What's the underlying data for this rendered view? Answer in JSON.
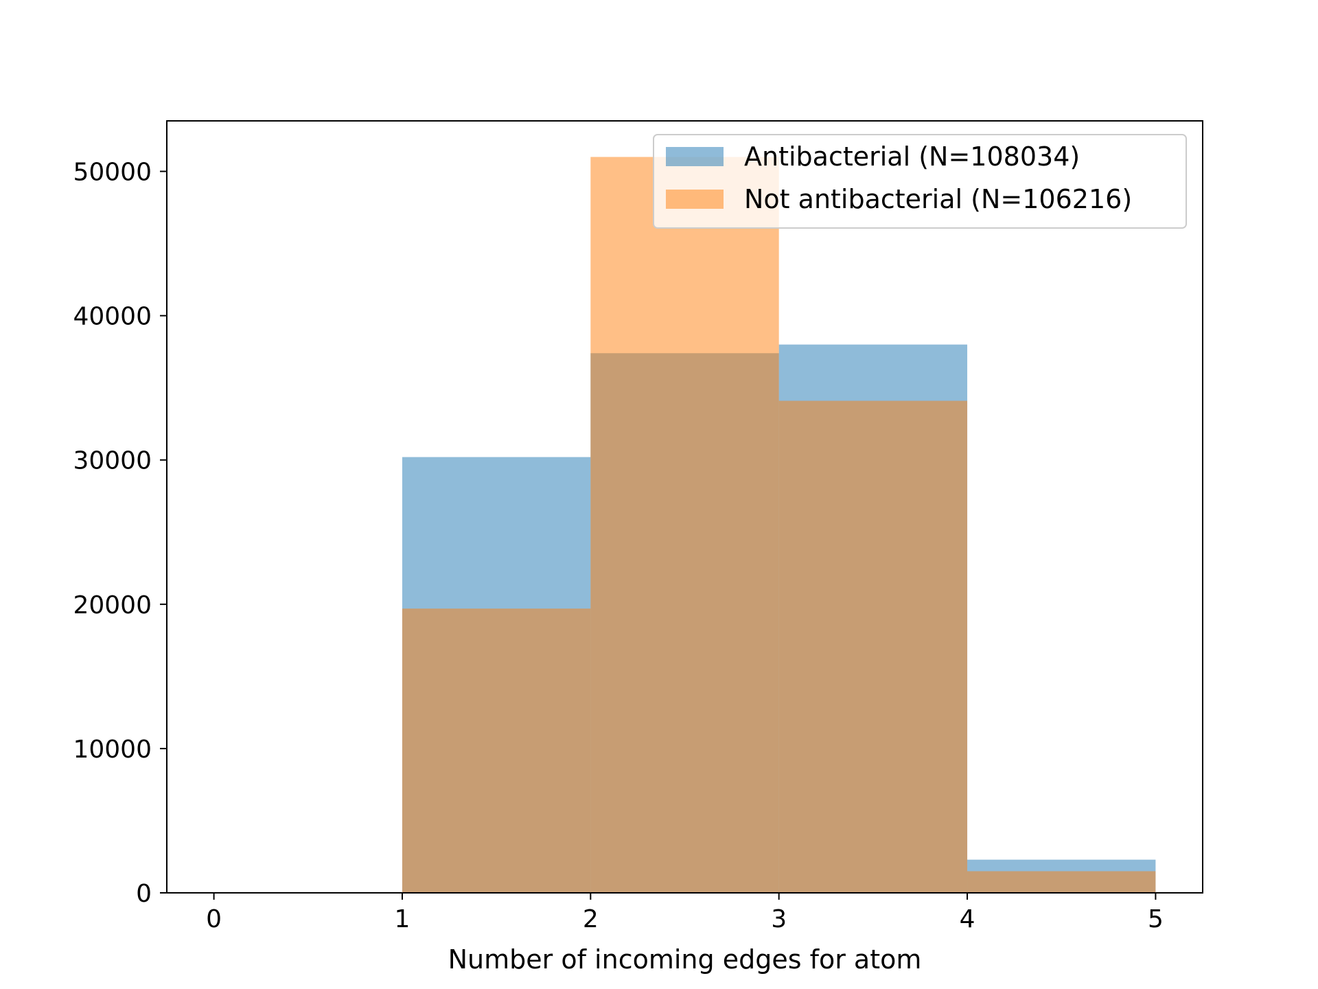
{
  "chart_data": {
    "type": "bar",
    "title": "",
    "xlabel": "Number of incoming edges for atom",
    "ylabel": "",
    "xlim": [
      -0.25,
      5.25
    ],
    "ylim": [
      0,
      53500
    ],
    "xticks": [
      0,
      1,
      2,
      3,
      4,
      5
    ],
    "yticks": [
      0,
      10000,
      20000,
      30000,
      40000,
      50000
    ],
    "grid": false,
    "legend_placement": "top-right",
    "bin_edges": [
      0,
      1,
      2,
      3,
      4,
      5
    ],
    "series": [
      {
        "name": "Antibacterial (N=108034)",
        "color": "#1f77b4",
        "opacity": 0.5,
        "values": [
          0,
          30200,
          37400,
          38000,
          2300
        ]
      },
      {
        "name": "Not antibacterial (N=106216)",
        "color": "#ff7f0e",
        "opacity": 0.5,
        "values": [
          0,
          19700,
          51000,
          34100,
          1500
        ]
      }
    ]
  }
}
